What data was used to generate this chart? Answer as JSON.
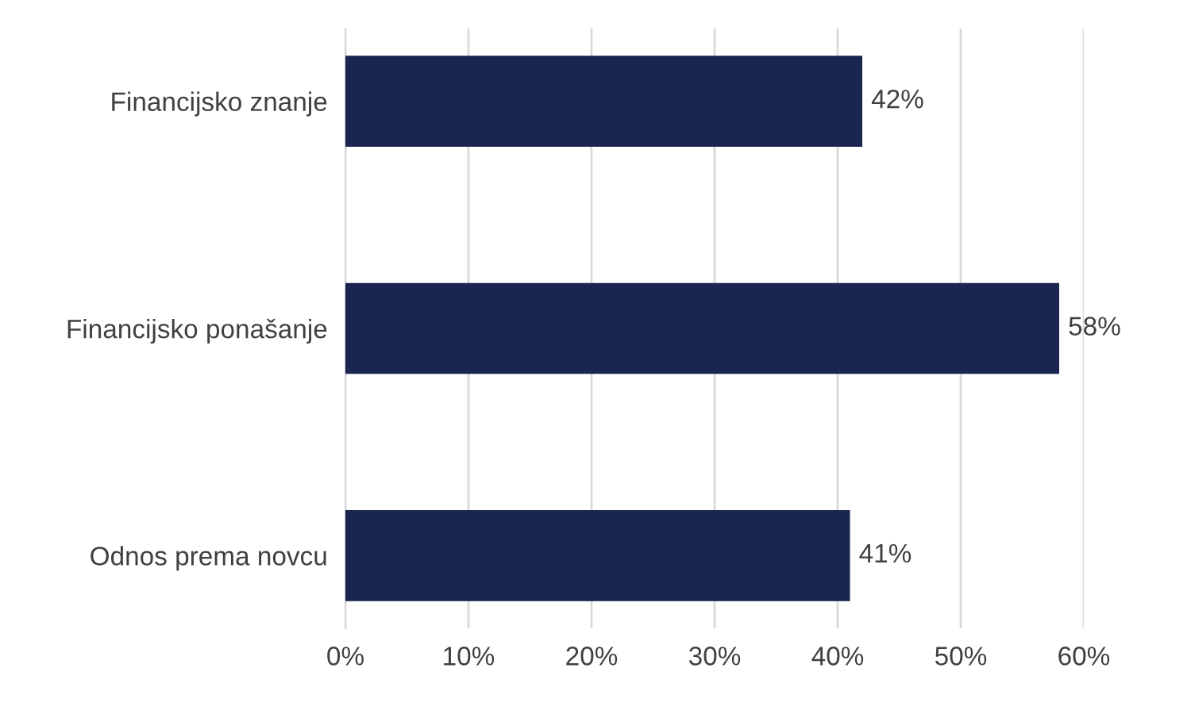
{
  "chart_data": {
    "type": "bar",
    "orientation": "horizontal",
    "categories": [
      "Financijsko znanje",
      "Financijsko ponašanje",
      "Odnos prema novcu"
    ],
    "values": [
      42,
      58,
      41
    ],
    "value_labels": [
      "42%",
      "58%",
      "41%"
    ],
    "color": "#1a2550",
    "xlim": [
      0,
      60
    ],
    "xticks": [
      {
        "value": 0,
        "label": "0%"
      },
      {
        "value": 10,
        "label": "10%"
      },
      {
        "value": 20,
        "label": "20%"
      },
      {
        "value": 30,
        "label": "30%"
      },
      {
        "value": 40,
        "label": "40%"
      },
      {
        "value": 50,
        "label": "50%"
      },
      {
        "value": 60,
        "label": "60%"
      }
    ],
    "grid": "x",
    "legend": false
  }
}
